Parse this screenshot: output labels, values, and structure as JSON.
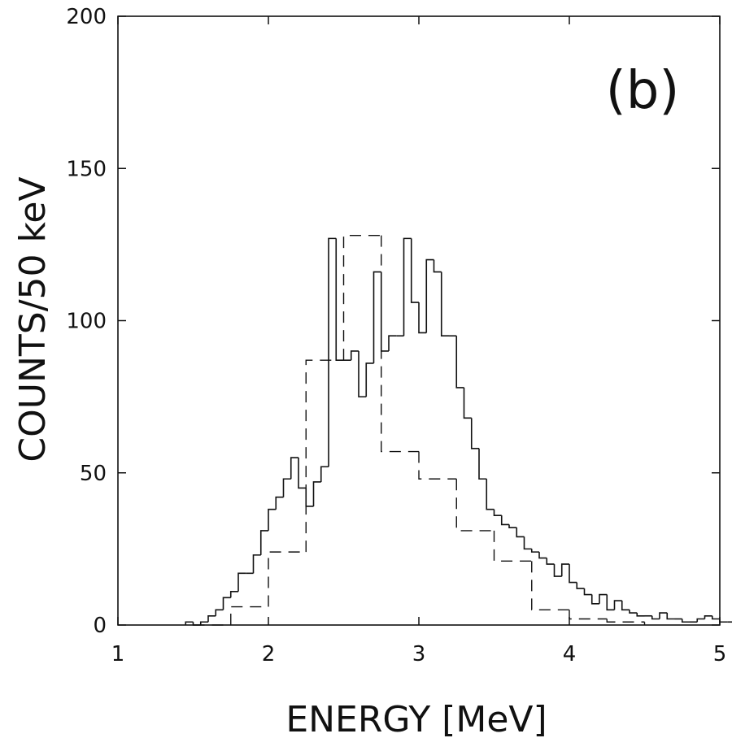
{
  "chart_data": {
    "type": "bar",
    "panel_label": "(b)",
    "xlabel": "ENERGY [MeV]",
    "ylabel": "COUNTS/50 keV",
    "xlim": [
      1,
      5
    ],
    "ylim": [
      0,
      200
    ],
    "x_ticks": [
      1,
      2,
      3,
      4,
      5
    ],
    "y_ticks": [
      0,
      50,
      100,
      150,
      200
    ],
    "grid": false,
    "legend": "none",
    "series": [
      {
        "style": "solid",
        "bin_width": 0.05,
        "x_start": 1.45,
        "values": [
          1,
          0,
          1,
          3,
          5,
          9,
          11,
          17,
          17,
          23,
          31,
          38,
          42,
          48,
          55,
          45,
          39,
          47,
          52,
          127,
          87,
          87,
          90,
          75,
          86,
          116,
          90,
          95,
          95,
          127,
          106,
          96,
          120,
          116,
          95,
          95,
          78,
          68,
          58,
          48,
          38,
          36,
          33,
          32,
          29,
          25,
          24,
          22,
          20,
          16,
          20,
          14,
          12,
          10,
          7,
          10,
          5,
          8,
          5,
          4,
          3,
          3,
          2,
          4,
          2,
          2,
          1,
          1,
          2,
          3,
          2,
          1,
          1,
          1
        ]
      },
      {
        "style": "dashed",
        "bin_width": 0.25,
        "x_start": 1.5,
        "values": [
          0,
          6,
          24,
          87,
          128,
          57,
          48,
          31,
          21,
          5,
          2,
          1
        ]
      }
    ]
  }
}
